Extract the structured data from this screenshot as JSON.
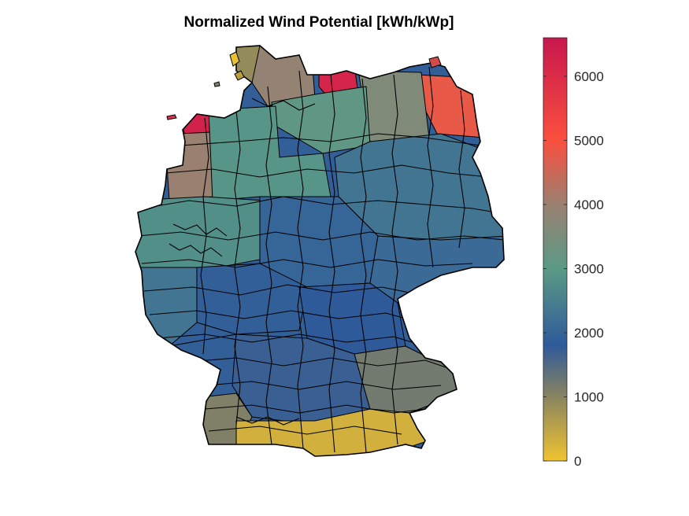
{
  "title": "Normalized Wind Potential [kWh/kWp]",
  "colorbar": {
    "min": 0,
    "max": 6600,
    "ticks": [
      "0",
      "1000",
      "2000",
      "3000",
      "4000",
      "5000",
      "6000"
    ],
    "tick_values": [
      0,
      1000,
      2000,
      3000,
      4000,
      5000,
      6000
    ],
    "colormap": [
      {
        "v": 0,
        "color": "#f0c330"
      },
      {
        "v": 1000,
        "color": "#8a8560"
      },
      {
        "v": 1800,
        "color": "#2f5a9a"
      },
      {
        "v": 3000,
        "color": "#5a9a86"
      },
      {
        "v": 4000,
        "color": "#9a8070"
      },
      {
        "v": 5000,
        "color": "#fb4f3e"
      },
      {
        "v": 6600,
        "color": "#c8174e"
      }
    ]
  },
  "map": {
    "region": "Germany",
    "regions": [
      {
        "name": "north-frisia",
        "value": 900
      },
      {
        "name": "schleswig-coast",
        "value": 3900
      },
      {
        "name": "fehmarn-coast",
        "value": 6200
      },
      {
        "name": "east-frisian-islands",
        "value": 6300
      },
      {
        "name": "ems-coast",
        "value": 4000
      },
      {
        "name": "rugen-coast",
        "value": 4800
      },
      {
        "name": "vorpommern",
        "value": 3600
      },
      {
        "name": "mecklenburg",
        "value": 3100
      },
      {
        "name": "lower-saxony-north",
        "value": 2900
      },
      {
        "name": "north-rhine-westphalia",
        "value": 2800
      },
      {
        "name": "brandenburg",
        "value": 2300
      },
      {
        "name": "central-germany",
        "value": 2000
      },
      {
        "name": "hesse-thuringia",
        "value": 1900
      },
      {
        "name": "saxony",
        "value": 2100
      },
      {
        "name": "rhineland",
        "value": 2300
      },
      {
        "name": "franconia",
        "value": 1800
      },
      {
        "name": "baden",
        "value": 1900
      },
      {
        "name": "swabia",
        "value": 1700
      },
      {
        "name": "bavarian-forest",
        "value": 1200
      },
      {
        "name": "black-forest",
        "value": 1100
      },
      {
        "name": "alpine-foothills",
        "value": 300
      }
    ]
  }
}
